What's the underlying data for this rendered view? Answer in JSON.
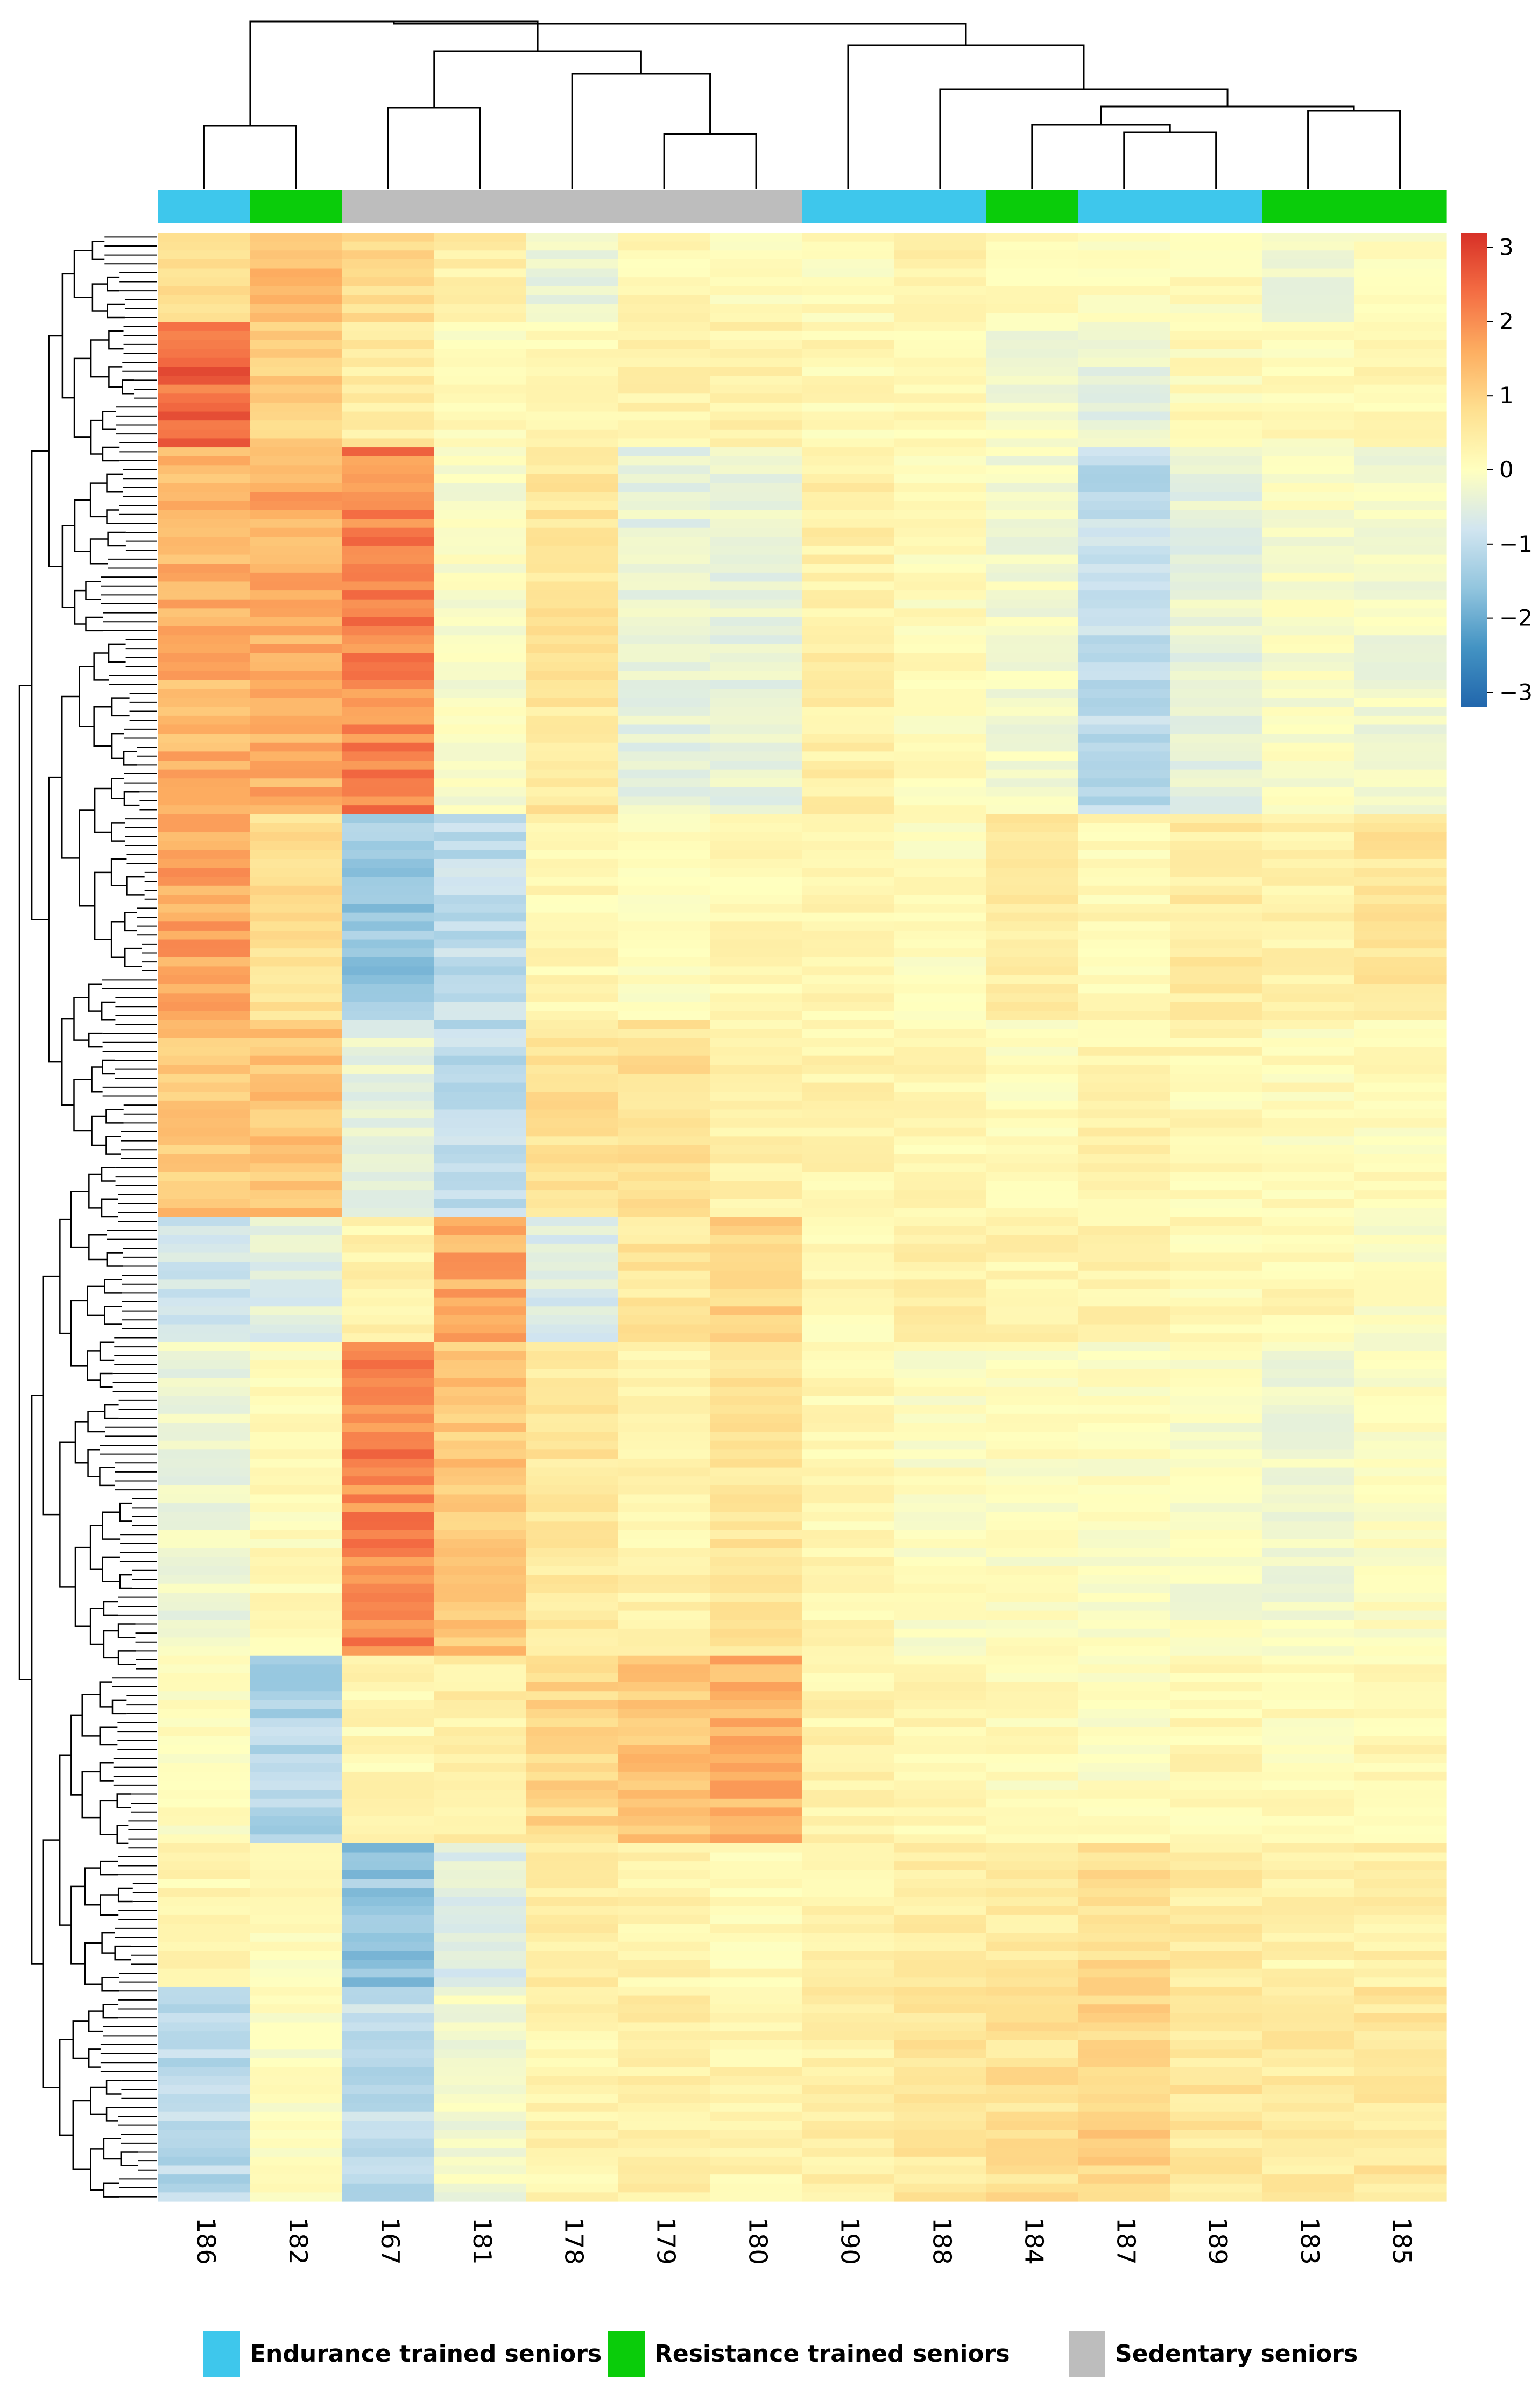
{
  "chart_data": {
    "type": "heatmap",
    "title": "",
    "xlabel": "",
    "ylabel": "",
    "samples": [
      "186",
      "182",
      "167",
      "181",
      "178",
      "179",
      "180",
      "190",
      "188",
      "184",
      "187",
      "189",
      "183",
      "185"
    ],
    "sample_groups": [
      "Endurance trained seniors",
      "Resistance trained seniors",
      "Sedentary seniors",
      "Sedentary seniors",
      "Sedentary seniors",
      "Sedentary seniors",
      "Sedentary seniors",
      "Endurance trained seniors",
      "Endurance trained seniors",
      "Resistance trained seniors",
      "Endurance trained seniors",
      "Endurance trained seniors",
      "Resistance trained seniors",
      "Resistance trained seniors"
    ],
    "groups": [
      {
        "name": "Endurance trained seniors",
        "color": "#3ec7ec"
      },
      {
        "name": "Resistance trained seniors",
        "color": "#0acc0a"
      },
      {
        "name": "Sedentary seniors",
        "color": "#bdbdbd"
      }
    ],
    "colorbar": {
      "range": [
        -3.2,
        3.2
      ],
      "ticks": [
        3,
        2,
        1,
        0,
        -1,
        -2,
        -3
      ],
      "tick_labels": [
        "3",
        "2",
        "1",
        "0",
        "−1",
        "−2",
        "−3"
      ],
      "colors": [
        "#2166ac",
        "#4393c3",
        "#92c5de",
        "#d1e5f0",
        "#ffffbf",
        "#fee090",
        "#fdae61",
        "#f46d43",
        "#d73027"
      ]
    },
    "row_clusters": [
      {
        "rows": "1-10",
        "values": [
          0.7,
          1.3,
          0.9,
          0.4,
          -0.3,
          0.2,
          0.1,
          0.1,
          0.3,
          0.1,
          0.0,
          0.1,
          -0.3,
          0.0
        ]
      },
      {
        "rows": "11-24",
        "values": [
          2.5,
          1.0,
          0.5,
          0.1,
          0.2,
          0.3,
          0.3,
          0.2,
          0.2,
          -0.2,
          -0.4,
          0.1,
          0.1,
          0.2
        ]
      },
      {
        "rows": "25-65",
        "values": [
          1.5,
          1.6,
          2.1,
          -0.1,
          0.6,
          -0.4,
          -0.4,
          0.4,
          0.1,
          -0.2,
          -1.0,
          -0.4,
          -0.1,
          -0.2
        ]
      },
      {
        "rows": "66-88",
        "values": [
          1.7,
          0.8,
          -1.5,
          -1.0,
          0.2,
          0.1,
          0.2,
          0.2,
          0.1,
          0.5,
          0.2,
          0.5,
          0.3,
          0.6
        ]
      },
      {
        "rows": "89-110",
        "values": [
          1.2,
          1.3,
          -0.4,
          -1.0,
          0.7,
          0.7,
          0.3,
          0.3,
          0.2,
          0.1,
          0.3,
          0.2,
          0.1,
          0.1
        ]
      },
      {
        "rows": "111-124",
        "values": [
          -0.8,
          -0.5,
          0.3,
          1.6,
          -0.6,
          0.6,
          1.0,
          0.2,
          0.4,
          0.3,
          0.3,
          0.2,
          0.2,
          0.0
        ]
      },
      {
        "rows": "125-159",
        "values": [
          -0.3,
          0.1,
          2.1,
          1.2,
          0.6,
          0.3,
          0.6,
          0.2,
          0.0,
          0.0,
          0.0,
          -0.1,
          -0.2,
          0.0
        ]
      },
      {
        "rows": "160-180",
        "values": [
          0.0,
          -1.2,
          0.2,
          0.4,
          0.9,
          1.2,
          1.5,
          0.3,
          0.2,
          0.1,
          0.0,
          0.2,
          0.1,
          0.2
        ]
      },
      {
        "rows": "181-196",
        "values": [
          0.2,
          0.1,
          -1.5,
          -0.6,
          0.4,
          0.3,
          0.2,
          0.3,
          0.4,
          0.5,
          0.8,
          0.5,
          0.3,
          0.4
        ]
      },
      {
        "rows": "197-220",
        "values": [
          -1.1,
          0.0,
          -1.0,
          -0.2,
          0.3,
          0.4,
          0.3,
          0.4,
          0.6,
          0.7,
          1.0,
          0.6,
          0.5,
          0.6
        ]
      }
    ]
  }
}
